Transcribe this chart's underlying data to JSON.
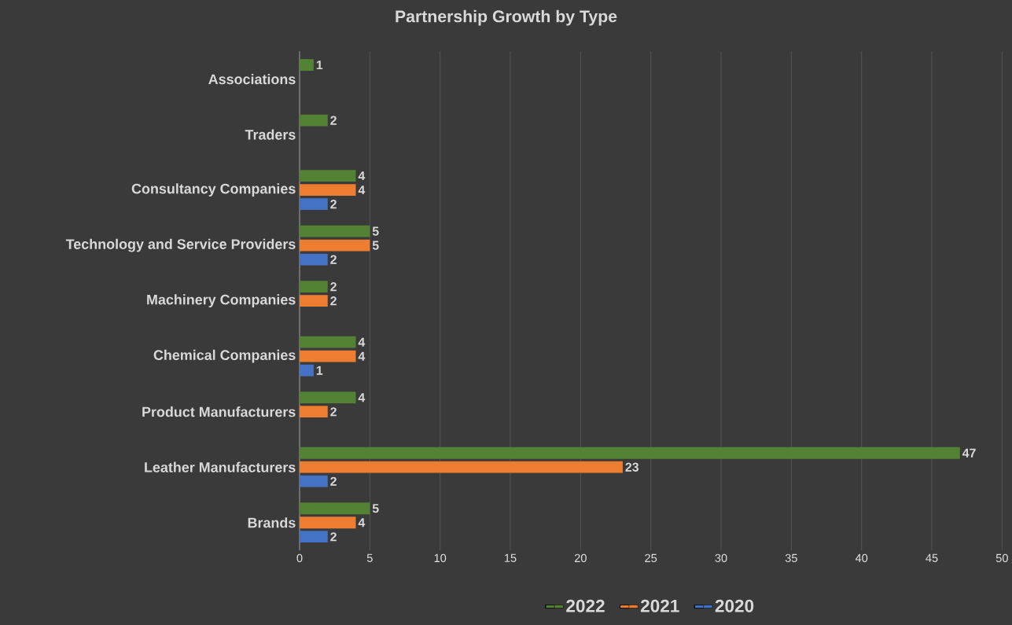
{
  "chart_data": {
    "type": "bar",
    "orientation": "horizontal",
    "title": "Partnership Growth by Type",
    "categories": [
      "Associations",
      "Traders",
      "Consultancy Companies",
      "Technology and Service Providers",
      "Machinery Companies",
      "Chemical Companies",
      "Product Manufacturers",
      "Leather Manufacturers",
      "Brands"
    ],
    "series": [
      {
        "name": "2022",
        "color": "#548235",
        "values": [
          1,
          2,
          4,
          5,
          2,
          4,
          4,
          47,
          5
        ]
      },
      {
        "name": "2021",
        "color": "#ed7d31",
        "values": [
          null,
          null,
          4,
          5,
          2,
          4,
          2,
          23,
          4
        ]
      },
      {
        "name": "2020",
        "color": "#4472c4",
        "values": [
          null,
          null,
          2,
          2,
          null,
          1,
          null,
          2,
          2
        ]
      }
    ],
    "xlim": [
      0,
      50
    ],
    "xticks": [
      0,
      5,
      10,
      15,
      20,
      25,
      30,
      35,
      40,
      45,
      50
    ],
    "grid": "x",
    "legend": "bottom",
    "data_labels": true
  }
}
